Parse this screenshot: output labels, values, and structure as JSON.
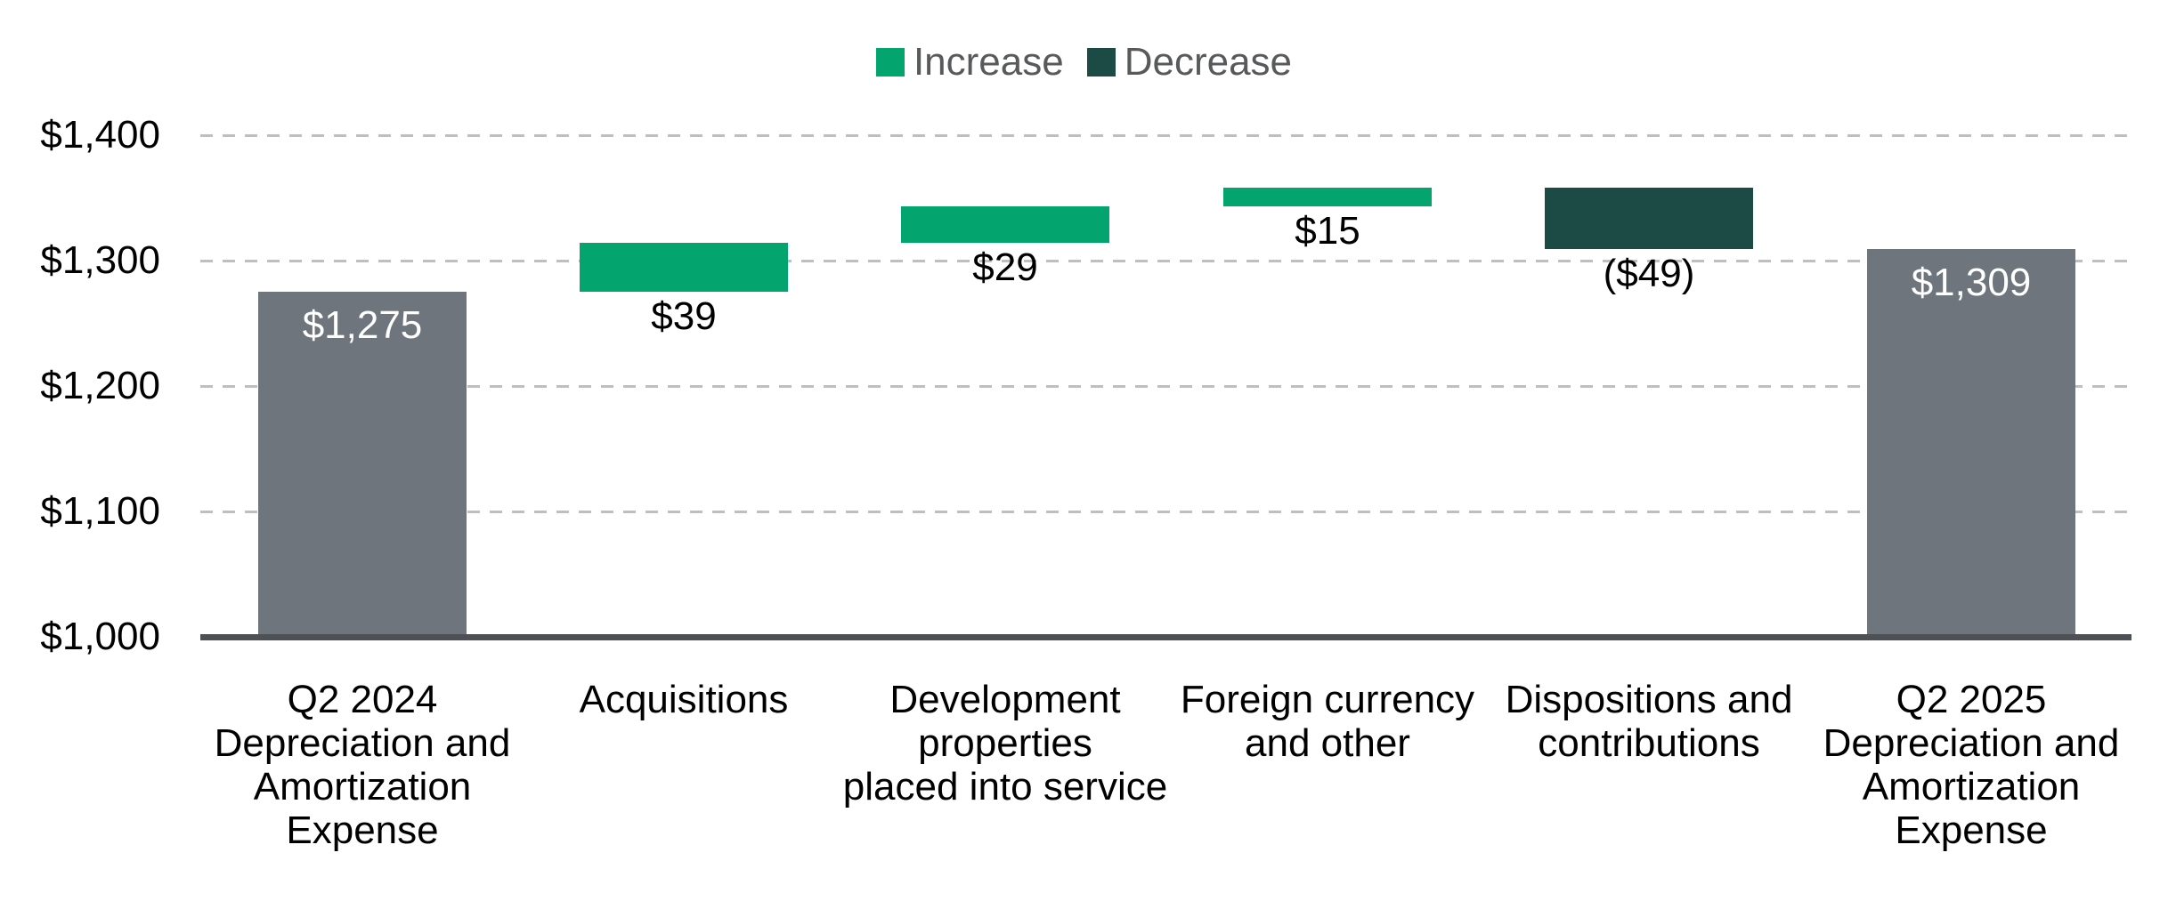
{
  "chart_data": {
    "type": "bar",
    "subtype": "waterfall",
    "title": "",
    "legend": [
      {
        "label": "Increase",
        "color": "#04A46E"
      },
      {
        "label": "Decrease",
        "color": "#1C4A44"
      }
    ],
    "legend_position": "top-center",
    "y_axis": {
      "min": 1000,
      "max": 1400,
      "tick_interval": 100,
      "ticks": [
        {
          "label": "$1,400",
          "value": 1400
        },
        {
          "label": "$1,300",
          "value": 1300
        },
        {
          "label": "$1,200",
          "value": 1200
        },
        {
          "label": "$1,100",
          "value": 1100
        },
        {
          "label": "$1,000",
          "value": 1000
        }
      ],
      "gridlines": "dashed"
    },
    "categories": [
      "Q2 2024 Depreciation and Amortization Expense",
      "Acquisitions",
      "Development properties placed into service",
      "Foreign currency and other",
      "Dispositions and contributions",
      "Q2 2025 Depreciation and Amortization Expense"
    ],
    "bars": [
      {
        "category_lines": [
          "Q2 2024",
          "Depreciation and",
          "Amortization",
          "Expense"
        ],
        "role": "total",
        "start": 1000,
        "end": 1275,
        "value": 1275,
        "label": "$1,275",
        "label_position": "inside",
        "label_color": "#FFFFFF",
        "color": "#6E757C"
      },
      {
        "category_lines": [
          "Acquisitions"
        ],
        "role": "increase",
        "start": 1275,
        "end": 1314,
        "value": 39,
        "label": "$39",
        "label_position": "below",
        "label_color": "#000000",
        "color": "#04A46E"
      },
      {
        "category_lines": [
          "Development",
          "properties",
          "placed into service"
        ],
        "role": "increase",
        "start": 1314,
        "end": 1343,
        "value": 29,
        "label": "$29",
        "label_position": "below",
        "label_color": "#000000",
        "color": "#04A46E"
      },
      {
        "category_lines": [
          "Foreign currency",
          "and other"
        ],
        "role": "increase",
        "start": 1343,
        "end": 1358,
        "value": 15,
        "label": "$15",
        "label_position": "below",
        "label_color": "#000000",
        "color": "#04A46E"
      },
      {
        "category_lines": [
          "Dispositions and",
          "contributions"
        ],
        "role": "decrease",
        "start": 1358,
        "end": 1309,
        "value": -49,
        "label": "($49)",
        "label_position": "below",
        "label_color": "#000000",
        "color": "#1C4A44"
      },
      {
        "category_lines": [
          "Q2 2025",
          "Depreciation and",
          "Amortization",
          "Expense"
        ],
        "role": "total",
        "start": 1000,
        "end": 1309,
        "value": 1309,
        "label": "$1,309",
        "label_position": "inside",
        "label_color": "#FFFFFF",
        "color": "#6E757C"
      }
    ],
    "colors": {
      "increase": "#04A46E",
      "decrease": "#1C4A44",
      "total": "#6E757C",
      "axis_line": "#4D5054",
      "gridline": "#BFBFBF",
      "axis_text": "#000000",
      "legend_text": "#58595B"
    }
  }
}
